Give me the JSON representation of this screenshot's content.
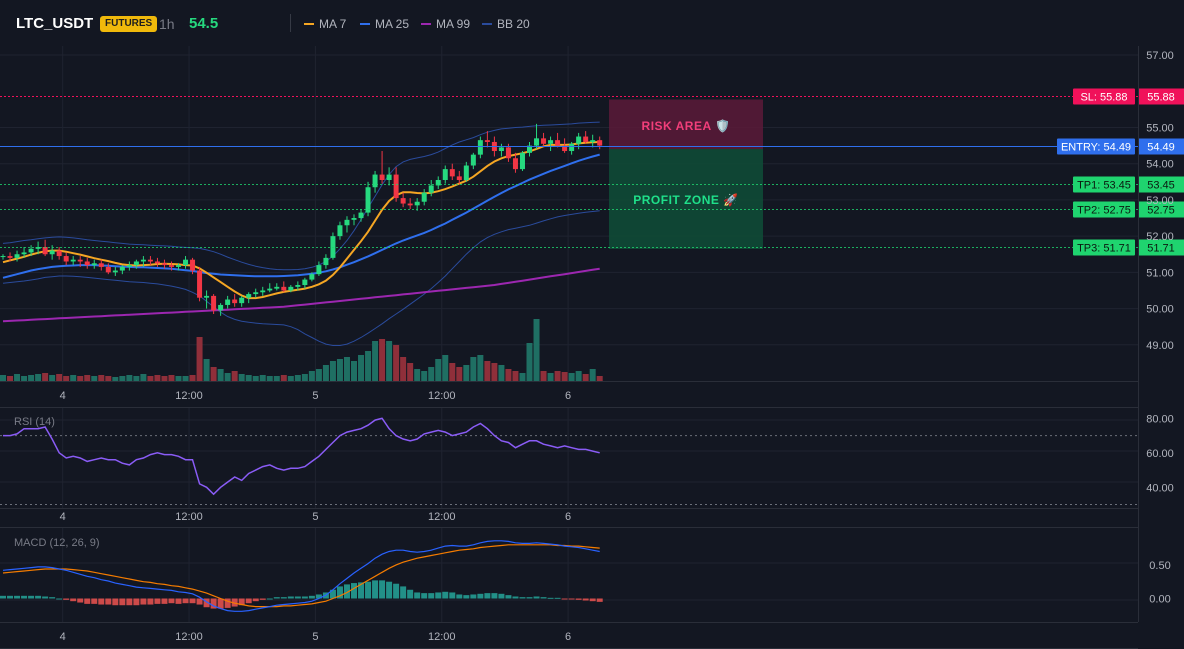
{
  "header": {
    "symbol": "LTC_USDT",
    "badge": "FUTURES",
    "timeframe": "1h",
    "price": "54.5",
    "legend": [
      {
        "label": "MA 7",
        "color": "#f5a623"
      },
      {
        "label": "MA 25",
        "color": "#2f6fed"
      },
      {
        "label": "MA 99",
        "color": "#9c27b0"
      },
      {
        "label": "BB 20",
        "color": "#2a4b9c"
      }
    ]
  },
  "zones": {
    "risk_label": "RISK AREA 🛡️",
    "profit_label": "PROFIT ZONE 🚀"
  },
  "colors": {
    "up": "#26d97f",
    "down": "#f23645",
    "vol_up": "#1f6f63",
    "vol_down": "#8f2f3a",
    "entry": "#2f6fed",
    "sl": "#f0115a",
    "tp": "#1fd46f"
  },
  "chart_data": {
    "type": "candlestick",
    "x_ticks": [
      "4",
      "12:00",
      "5",
      "12:00",
      "6"
    ],
    "x_tick_index": [
      8.5,
      26.5,
      44.5,
      62.5,
      80.5
    ],
    "price_axis": {
      "ticks": [
        "57.00",
        "55.00",
        "54.00",
        "53.00",
        "52.00",
        "51.00",
        "50.00",
        "49.00"
      ],
      "tick_values": [
        57,
        55,
        54,
        53,
        52,
        51,
        50,
        49
      ],
      "range": [
        48.0,
        57.25
      ]
    },
    "levels": [
      {
        "label": "SL: 55.88",
        "value_text": "55.88",
        "value": 55.88,
        "kind": "sl"
      },
      {
        "label": "ENTRY: 54.49",
        "value_text": "54.49",
        "value": 54.49,
        "kind": "entry"
      },
      {
        "label": "TP1: 53.45",
        "value_text": "53.45",
        "value": 53.45,
        "kind": "tp"
      },
      {
        "label": "TP2: 52.75",
        "value_text": "52.75",
        "value": 52.75,
        "kind": "tp"
      },
      {
        "label": "TP3: 51.71",
        "value_text": "51.71",
        "value": 51.71,
        "kind": "tp"
      }
    ],
    "candles": [
      [
        51.45,
        51.5,
        51.35,
        51.45
      ],
      [
        51.45,
        51.55,
        51.3,
        51.4
      ],
      [
        51.4,
        51.6,
        51.3,
        51.5
      ],
      [
        51.5,
        51.7,
        51.4,
        51.55
      ],
      [
        51.55,
        51.75,
        51.45,
        51.65
      ],
      [
        51.65,
        51.85,
        51.5,
        51.7
      ],
      [
        51.7,
        51.9,
        51.45,
        51.5
      ],
      [
        51.5,
        51.75,
        51.35,
        51.6
      ],
      [
        51.6,
        51.7,
        51.35,
        51.45
      ],
      [
        51.45,
        51.55,
        51.2,
        51.3
      ],
      [
        51.3,
        51.45,
        51.2,
        51.35
      ],
      [
        51.35,
        51.45,
        51.15,
        51.3
      ],
      [
        51.3,
        51.4,
        51.1,
        51.2
      ],
      [
        51.2,
        51.35,
        51.1,
        51.25
      ],
      [
        51.25,
        51.35,
        51.05,
        51.15
      ],
      [
        51.15,
        51.25,
        50.95,
        51.0
      ],
      [
        51.0,
        51.15,
        50.9,
        51.05
      ],
      [
        51.05,
        51.2,
        50.95,
        51.15
      ],
      [
        51.15,
        51.3,
        51.05,
        51.2
      ],
      [
        51.2,
        51.35,
        51.1,
        51.3
      ],
      [
        51.3,
        51.45,
        51.15,
        51.35
      ],
      [
        51.35,
        51.45,
        51.2,
        51.3
      ],
      [
        51.3,
        51.4,
        51.15,
        51.25
      ],
      [
        51.25,
        51.35,
        51.1,
        51.2
      ],
      [
        51.2,
        51.3,
        51.05,
        51.15
      ],
      [
        51.15,
        51.25,
        51.05,
        51.2
      ],
      [
        51.2,
        51.45,
        51.1,
        51.35
      ],
      [
        51.35,
        51.4,
        50.95,
        51.05
      ],
      [
        51.05,
        51.15,
        50.2,
        50.3
      ],
      [
        50.3,
        50.5,
        50.0,
        50.35
      ],
      [
        50.35,
        50.4,
        49.85,
        49.95
      ],
      [
        49.95,
        50.15,
        49.8,
        50.1
      ],
      [
        50.1,
        50.35,
        50.0,
        50.25
      ],
      [
        50.25,
        50.4,
        50.05,
        50.15
      ],
      [
        50.15,
        50.35,
        50.05,
        50.3
      ],
      [
        50.3,
        50.45,
        50.15,
        50.4
      ],
      [
        50.4,
        50.55,
        50.3,
        50.45
      ],
      [
        50.45,
        50.6,
        50.35,
        50.5
      ],
      [
        50.5,
        50.7,
        50.45,
        50.55
      ],
      [
        50.55,
        50.7,
        50.5,
        50.6
      ],
      [
        50.6,
        50.75,
        50.45,
        50.5
      ],
      [
        50.5,
        50.65,
        50.45,
        50.6
      ],
      [
        50.6,
        50.75,
        50.5,
        50.65
      ],
      [
        50.65,
        50.85,
        50.55,
        50.8
      ],
      [
        50.8,
        51.0,
        50.75,
        50.95
      ],
      [
        50.95,
        51.3,
        50.9,
        51.2
      ],
      [
        51.2,
        51.5,
        51.1,
        51.4
      ],
      [
        51.4,
        52.1,
        51.35,
        52.0
      ],
      [
        52.0,
        52.4,
        51.9,
        52.3
      ],
      [
        52.3,
        52.55,
        52.1,
        52.45
      ],
      [
        52.45,
        52.6,
        52.3,
        52.5
      ],
      [
        52.5,
        52.75,
        52.4,
        52.65
      ],
      [
        52.65,
        53.5,
        52.55,
        53.35
      ],
      [
        53.35,
        53.8,
        53.2,
        53.7
      ],
      [
        53.7,
        54.35,
        53.45,
        53.55
      ],
      [
        53.55,
        53.9,
        53.4,
        53.7
      ],
      [
        53.7,
        53.9,
        52.95,
        53.05
      ],
      [
        53.05,
        53.2,
        52.8,
        52.9
      ],
      [
        52.9,
        53.05,
        52.75,
        52.85
      ],
      [
        52.85,
        53.05,
        52.7,
        52.95
      ],
      [
        52.95,
        53.3,
        52.85,
        53.2
      ],
      [
        53.2,
        53.55,
        53.1,
        53.4
      ],
      [
        53.4,
        53.65,
        53.3,
        53.55
      ],
      [
        53.55,
        53.95,
        53.45,
        53.85
      ],
      [
        53.85,
        54.0,
        53.55,
        53.65
      ],
      [
        53.65,
        53.8,
        53.45,
        53.55
      ],
      [
        53.55,
        54.05,
        53.5,
        53.95
      ],
      [
        53.95,
        54.3,
        53.85,
        54.25
      ],
      [
        54.25,
        54.75,
        54.15,
        54.65
      ],
      [
        54.65,
        54.9,
        54.45,
        54.6
      ],
      [
        54.6,
        54.75,
        54.2,
        54.35
      ],
      [
        54.35,
        54.55,
        54.2,
        54.45
      ],
      [
        54.45,
        54.55,
        54.05,
        54.15
      ],
      [
        54.15,
        54.3,
        53.75,
        53.85
      ],
      [
        53.85,
        54.35,
        53.8,
        54.3
      ],
      [
        54.3,
        54.6,
        54.2,
        54.5
      ],
      [
        54.5,
        55.1,
        54.4,
        54.7
      ],
      [
        54.7,
        54.85,
        54.45,
        54.55
      ],
      [
        54.55,
        54.75,
        54.35,
        54.65
      ],
      [
        54.65,
        54.85,
        54.45,
        54.5
      ],
      [
        54.5,
        54.7,
        54.3,
        54.35
      ],
      [
        54.35,
        54.6,
        54.25,
        54.55
      ],
      [
        54.55,
        54.85,
        54.4,
        54.75
      ],
      [
        54.75,
        54.9,
        54.55,
        54.6
      ],
      [
        54.6,
        54.8,
        54.45,
        54.65
      ],
      [
        54.65,
        54.75,
        54.4,
        54.5
      ]
    ],
    "volume": [
      6,
      5,
      7,
      5,
      6,
      7,
      8,
      6,
      7,
      5,
      6,
      5,
      6,
      5,
      6,
      5,
      4,
      5,
      6,
      5,
      7,
      5,
      6,
      5,
      6,
      5,
      5,
      6,
      44,
      22,
      14,
      12,
      8,
      10,
      7,
      6,
      5,
      6,
      5,
      5,
      6,
      5,
      6,
      7,
      10,
      12,
      16,
      20,
      22,
      24,
      20,
      26,
      30,
      40,
      42,
      40,
      36,
      24,
      18,
      12,
      10,
      14,
      22,
      26,
      18,
      14,
      16,
      24,
      26,
      20,
      18,
      16,
      12,
      10,
      8,
      38,
      62,
      10,
      8,
      10,
      9,
      8,
      10,
      7,
      12,
      5
    ],
    "volume_max": 70,
    "ma7": [
      51.28,
      51.33,
      51.38,
      51.43,
      51.49,
      51.54,
      51.58,
      51.6,
      51.6,
      51.57,
      51.53,
      51.49,
      51.44,
      51.39,
      51.35,
      51.31,
      51.26,
      51.22,
      51.2,
      51.19,
      51.2,
      51.21,
      51.23,
      51.24,
      51.23,
      51.22,
      51.2,
      51.19,
      51.11,
      50.99,
      50.86,
      50.73,
      50.6,
      50.47,
      50.36,
      50.29,
      50.29,
      50.32,
      50.37,
      50.42,
      50.46,
      50.49,
      50.52,
      50.55,
      50.6,
      50.67,
      50.77,
      50.93,
      51.14,
      51.38,
      51.62,
      51.86,
      52.12,
      52.43,
      52.73,
      52.97,
      53.13,
      53.21,
      53.21,
      53.19,
      53.18,
      53.2,
      53.24,
      53.3,
      53.37,
      53.45,
      53.53,
      53.64,
      53.79,
      53.94,
      54.06,
      54.15,
      54.21,
      54.25,
      54.29,
      54.34,
      54.41,
      54.48,
      54.52,
      54.52,
      54.52,
      54.53,
      54.56,
      54.58,
      54.59,
      54.6
    ],
    "ma25": [
      50.85,
      50.9,
      50.95,
      51.0,
      51.05,
      51.09,
      51.12,
      51.15,
      51.17,
      51.18,
      51.19,
      51.2,
      51.2,
      51.2,
      51.19,
      51.18,
      51.17,
      51.16,
      51.15,
      51.14,
      51.14,
      51.13,
      51.12,
      51.11,
      51.1,
      51.08,
      51.06,
      51.04,
      51.01,
      50.98,
      50.96,
      50.94,
      50.93,
      50.92,
      50.91,
      50.9,
      50.89,
      50.89,
      50.89,
      50.89,
      50.9,
      50.91,
      50.92,
      50.94,
      50.96,
      50.99,
      51.03,
      51.08,
      51.14,
      51.21,
      51.28,
      51.36,
      51.44,
      51.53,
      51.62,
      51.71,
      51.8,
      51.88,
      51.95,
      52.02,
      52.09,
      52.17,
      52.26,
      52.35,
      52.45,
      52.55,
      52.65,
      52.76,
      52.87,
      52.98,
      53.09,
      53.19,
      53.29,
      53.38,
      53.47,
      53.56,
      53.64,
      53.72,
      53.8,
      53.87,
      53.94,
      54.01,
      54.08,
      54.14,
      54.2,
      54.25
    ],
    "ma99": [
      49.65,
      49.66,
      49.67,
      49.68,
      49.69,
      49.7,
      49.71,
      49.72,
      49.73,
      49.74,
      49.75,
      49.76,
      49.77,
      49.78,
      49.79,
      49.8,
      49.81,
      49.82,
      49.83,
      49.84,
      49.85,
      49.86,
      49.87,
      49.88,
      49.89,
      49.9,
      49.91,
      49.92,
      49.93,
      49.94,
      49.95,
      49.96,
      49.97,
      49.98,
      49.99,
      50.0,
      50.01,
      50.02,
      50.03,
      50.04,
      50.05,
      50.07,
      50.09,
      50.11,
      50.13,
      50.15,
      50.17,
      50.19,
      50.21,
      50.23,
      50.25,
      50.27,
      50.29,
      50.31,
      50.33,
      50.35,
      50.37,
      50.39,
      50.41,
      50.43,
      50.45,
      50.47,
      50.49,
      50.51,
      50.53,
      50.55,
      50.57,
      50.59,
      50.61,
      50.63,
      50.65,
      50.68,
      50.71,
      50.74,
      50.77,
      50.8,
      50.83,
      50.86,
      50.89,
      50.92,
      50.95,
      50.98,
      51.01,
      51.04,
      51.07,
      51.1
    ],
    "bb_upper": [
      51.8,
      51.82,
      51.85,
      51.88,
      51.9,
      51.93,
      51.95,
      51.97,
      51.98,
      51.97,
      51.95,
      51.93,
      51.9,
      51.88,
      51.86,
      51.84,
      51.82,
      51.8,
      51.78,
      51.77,
      51.76,
      51.75,
      51.74,
      51.73,
      51.72,
      51.7,
      51.69,
      51.68,
      51.66,
      51.62,
      51.57,
      51.5,
      51.42,
      51.35,
      51.28,
      51.22,
      51.17,
      51.13,
      51.1,
      51.08,
      51.07,
      51.07,
      51.08,
      51.1,
      51.14,
      51.2,
      51.3,
      51.45,
      51.65,
      51.88,
      52.15,
      52.45,
      52.78,
      53.1,
      53.42,
      53.7,
      53.92,
      54.05,
      54.12,
      54.16,
      54.2,
      54.25,
      54.32,
      54.42,
      54.52,
      54.6,
      54.66,
      54.72,
      54.8,
      54.87,
      54.92,
      54.96,
      54.98,
      55.0,
      55.01,
      55.03,
      55.05,
      55.06,
      55.07,
      55.08,
      55.09,
      55.1,
      55.12,
      55.13,
      55.14,
      55.15
    ],
    "bb_lower": [
      50.7,
      50.72,
      50.74,
      50.76,
      50.79,
      50.82,
      50.86,
      50.88,
      50.9,
      50.9,
      50.89,
      50.88,
      50.86,
      50.84,
      50.82,
      50.8,
      50.78,
      50.76,
      50.74,
      50.73,
      50.72,
      50.7,
      50.68,
      50.65,
      50.62,
      50.58,
      50.53,
      50.45,
      50.35,
      50.2,
      50.05,
      49.9,
      49.78,
      49.7,
      49.65,
      49.62,
      49.6,
      49.58,
      49.57,
      49.56,
      49.55,
      49.5,
      49.42,
      49.3,
      49.2,
      49.1,
      49.02,
      48.98,
      48.98,
      49.02,
      49.1,
      49.2,
      49.32,
      49.45,
      49.58,
      49.72,
      49.85,
      49.98,
      50.12,
      50.26,
      50.4,
      50.55,
      50.72,
      50.9,
      51.1,
      51.3,
      51.5,
      51.68,
      51.84,
      51.96,
      52.05,
      52.12,
      52.18,
      52.22,
      52.26,
      52.3,
      52.36,
      52.42,
      52.48,
      52.53,
      52.57,
      52.6,
      52.63,
      52.66,
      52.68,
      52.7
    ],
    "rsi": {
      "title": "RSI (14)",
      "ticks": [
        "80.00",
        "60.00",
        "40.00"
      ],
      "tick_values": [
        80,
        60,
        40
      ],
      "range": [
        28,
        86
      ],
      "bands": [
        70,
        30
      ],
      "values": [
        70,
        70,
        71,
        74,
        74,
        74,
        75,
        68,
        60,
        57,
        58,
        57,
        55,
        56,
        57,
        56,
        56,
        54,
        53,
        56,
        57,
        59,
        60,
        59,
        59,
        58,
        56,
        56,
        42,
        40,
        36,
        40,
        43,
        46,
        44,
        48,
        50,
        52,
        53,
        51,
        50,
        51,
        51,
        52,
        55,
        58,
        62,
        66,
        70,
        72,
        73,
        74,
        76,
        79,
        80,
        74,
        70,
        68,
        67,
        68,
        71,
        72,
        73,
        72,
        70,
        71,
        72,
        75,
        77,
        74,
        70,
        67,
        66,
        63,
        65,
        67,
        67,
        65,
        64,
        63,
        64,
        63,
        62,
        62,
        61,
        60
      ]
    },
    "macd": {
      "title": "MACD (12, 26, 9)",
      "ticks": [
        "0.50",
        "0.00"
      ],
      "tick_values": [
        0.5,
        0.0
      ],
      "range": [
        -0.35,
        1.05
      ],
      "macd": [
        0.42,
        0.43,
        0.44,
        0.45,
        0.46,
        0.47,
        0.47,
        0.46,
        0.44,
        0.42,
        0.39,
        0.36,
        0.33,
        0.31,
        0.28,
        0.26,
        0.23,
        0.21,
        0.19,
        0.17,
        0.16,
        0.15,
        0.14,
        0.13,
        0.12,
        0.1,
        0.09,
        0.07,
        0.02,
        -0.05,
        -0.11,
        -0.15,
        -0.18,
        -0.19,
        -0.19,
        -0.18,
        -0.16,
        -0.14,
        -0.12,
        -0.1,
        -0.09,
        -0.08,
        -0.07,
        -0.06,
        -0.04,
        0.0,
        0.05,
        0.13,
        0.22,
        0.3,
        0.38,
        0.45,
        0.52,
        0.6,
        0.66,
        0.7,
        0.72,
        0.72,
        0.7,
        0.69,
        0.7,
        0.72,
        0.75,
        0.78,
        0.79,
        0.78,
        0.78,
        0.8,
        0.83,
        0.85,
        0.86,
        0.86,
        0.85,
        0.83,
        0.82,
        0.82,
        0.83,
        0.82,
        0.81,
        0.8,
        0.78,
        0.77,
        0.76,
        0.74,
        0.72,
        0.7
      ],
      "signal": [
        0.38,
        0.39,
        0.4,
        0.41,
        0.42,
        0.43,
        0.44,
        0.44,
        0.44,
        0.44,
        0.43,
        0.42,
        0.41,
        0.39,
        0.37,
        0.35,
        0.33,
        0.31,
        0.29,
        0.27,
        0.25,
        0.24,
        0.22,
        0.21,
        0.19,
        0.18,
        0.16,
        0.14,
        0.11,
        0.08,
        0.04,
        0.0,
        -0.04,
        -0.07,
        -0.09,
        -0.11,
        -0.12,
        -0.12,
        -0.12,
        -0.12,
        -0.11,
        -0.11,
        -0.1,
        -0.09,
        -0.08,
        -0.06,
        -0.04,
        0.0,
        0.04,
        0.09,
        0.15,
        0.21,
        0.27,
        0.33,
        0.39,
        0.45,
        0.5,
        0.54,
        0.57,
        0.6,
        0.62,
        0.64,
        0.66,
        0.68,
        0.7,
        0.72,
        0.73,
        0.74,
        0.76,
        0.77,
        0.78,
        0.79,
        0.8,
        0.8,
        0.8,
        0.8,
        0.8,
        0.8,
        0.8,
        0.79,
        0.79,
        0.78,
        0.78,
        0.77,
        0.76,
        0.75
      ]
    }
  }
}
